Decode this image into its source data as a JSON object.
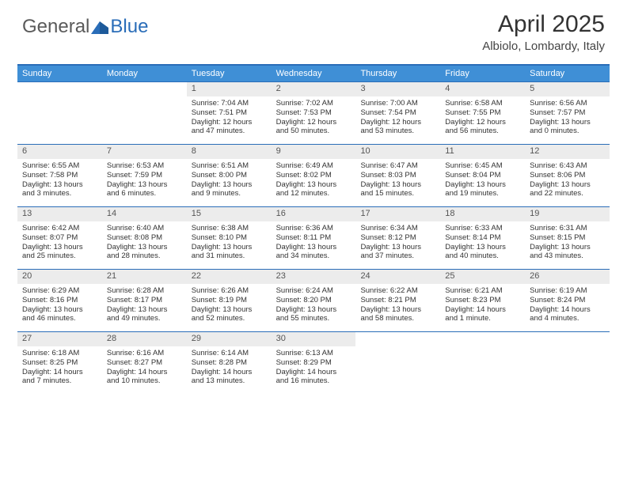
{
  "header": {
    "logo_general": "General",
    "logo_blue": "Blue",
    "month_title": "April 2025",
    "location": "Albiolo, Lombardy, Italy"
  },
  "colors": {
    "header_blue": "#3f8fd6",
    "rule_blue": "#2a6db8",
    "daynum_bg": "#ececec",
    "text": "#333333",
    "logo_gray": "#5a5a5a"
  },
  "weekdays": [
    "Sunday",
    "Monday",
    "Tuesday",
    "Wednesday",
    "Thursday",
    "Friday",
    "Saturday"
  ],
  "weeks": [
    [
      null,
      null,
      {
        "n": "1",
        "sr": "Sunrise: 7:04 AM",
        "ss": "Sunset: 7:51 PM",
        "d1": "Daylight: 12 hours",
        "d2": "and 47 minutes."
      },
      {
        "n": "2",
        "sr": "Sunrise: 7:02 AM",
        "ss": "Sunset: 7:53 PM",
        "d1": "Daylight: 12 hours",
        "d2": "and 50 minutes."
      },
      {
        "n": "3",
        "sr": "Sunrise: 7:00 AM",
        "ss": "Sunset: 7:54 PM",
        "d1": "Daylight: 12 hours",
        "d2": "and 53 minutes."
      },
      {
        "n": "4",
        "sr": "Sunrise: 6:58 AM",
        "ss": "Sunset: 7:55 PM",
        "d1": "Daylight: 12 hours",
        "d2": "and 56 minutes."
      },
      {
        "n": "5",
        "sr": "Sunrise: 6:56 AM",
        "ss": "Sunset: 7:57 PM",
        "d1": "Daylight: 13 hours",
        "d2": "and 0 minutes."
      }
    ],
    [
      {
        "n": "6",
        "sr": "Sunrise: 6:55 AM",
        "ss": "Sunset: 7:58 PM",
        "d1": "Daylight: 13 hours",
        "d2": "and 3 minutes."
      },
      {
        "n": "7",
        "sr": "Sunrise: 6:53 AM",
        "ss": "Sunset: 7:59 PM",
        "d1": "Daylight: 13 hours",
        "d2": "and 6 minutes."
      },
      {
        "n": "8",
        "sr": "Sunrise: 6:51 AM",
        "ss": "Sunset: 8:00 PM",
        "d1": "Daylight: 13 hours",
        "d2": "and 9 minutes."
      },
      {
        "n": "9",
        "sr": "Sunrise: 6:49 AM",
        "ss": "Sunset: 8:02 PM",
        "d1": "Daylight: 13 hours",
        "d2": "and 12 minutes."
      },
      {
        "n": "10",
        "sr": "Sunrise: 6:47 AM",
        "ss": "Sunset: 8:03 PM",
        "d1": "Daylight: 13 hours",
        "d2": "and 15 minutes."
      },
      {
        "n": "11",
        "sr": "Sunrise: 6:45 AM",
        "ss": "Sunset: 8:04 PM",
        "d1": "Daylight: 13 hours",
        "d2": "and 19 minutes."
      },
      {
        "n": "12",
        "sr": "Sunrise: 6:43 AM",
        "ss": "Sunset: 8:06 PM",
        "d1": "Daylight: 13 hours",
        "d2": "and 22 minutes."
      }
    ],
    [
      {
        "n": "13",
        "sr": "Sunrise: 6:42 AM",
        "ss": "Sunset: 8:07 PM",
        "d1": "Daylight: 13 hours",
        "d2": "and 25 minutes."
      },
      {
        "n": "14",
        "sr": "Sunrise: 6:40 AM",
        "ss": "Sunset: 8:08 PM",
        "d1": "Daylight: 13 hours",
        "d2": "and 28 minutes."
      },
      {
        "n": "15",
        "sr": "Sunrise: 6:38 AM",
        "ss": "Sunset: 8:10 PM",
        "d1": "Daylight: 13 hours",
        "d2": "and 31 minutes."
      },
      {
        "n": "16",
        "sr": "Sunrise: 6:36 AM",
        "ss": "Sunset: 8:11 PM",
        "d1": "Daylight: 13 hours",
        "d2": "and 34 minutes."
      },
      {
        "n": "17",
        "sr": "Sunrise: 6:34 AM",
        "ss": "Sunset: 8:12 PM",
        "d1": "Daylight: 13 hours",
        "d2": "and 37 minutes."
      },
      {
        "n": "18",
        "sr": "Sunrise: 6:33 AM",
        "ss": "Sunset: 8:14 PM",
        "d1": "Daylight: 13 hours",
        "d2": "and 40 minutes."
      },
      {
        "n": "19",
        "sr": "Sunrise: 6:31 AM",
        "ss": "Sunset: 8:15 PM",
        "d1": "Daylight: 13 hours",
        "d2": "and 43 minutes."
      }
    ],
    [
      {
        "n": "20",
        "sr": "Sunrise: 6:29 AM",
        "ss": "Sunset: 8:16 PM",
        "d1": "Daylight: 13 hours",
        "d2": "and 46 minutes."
      },
      {
        "n": "21",
        "sr": "Sunrise: 6:28 AM",
        "ss": "Sunset: 8:17 PM",
        "d1": "Daylight: 13 hours",
        "d2": "and 49 minutes."
      },
      {
        "n": "22",
        "sr": "Sunrise: 6:26 AM",
        "ss": "Sunset: 8:19 PM",
        "d1": "Daylight: 13 hours",
        "d2": "and 52 minutes."
      },
      {
        "n": "23",
        "sr": "Sunrise: 6:24 AM",
        "ss": "Sunset: 8:20 PM",
        "d1": "Daylight: 13 hours",
        "d2": "and 55 minutes."
      },
      {
        "n": "24",
        "sr": "Sunrise: 6:22 AM",
        "ss": "Sunset: 8:21 PM",
        "d1": "Daylight: 13 hours",
        "d2": "and 58 minutes."
      },
      {
        "n": "25",
        "sr": "Sunrise: 6:21 AM",
        "ss": "Sunset: 8:23 PM",
        "d1": "Daylight: 14 hours",
        "d2": "and 1 minute."
      },
      {
        "n": "26",
        "sr": "Sunrise: 6:19 AM",
        "ss": "Sunset: 8:24 PM",
        "d1": "Daylight: 14 hours",
        "d2": "and 4 minutes."
      }
    ],
    [
      {
        "n": "27",
        "sr": "Sunrise: 6:18 AM",
        "ss": "Sunset: 8:25 PM",
        "d1": "Daylight: 14 hours",
        "d2": "and 7 minutes."
      },
      {
        "n": "28",
        "sr": "Sunrise: 6:16 AM",
        "ss": "Sunset: 8:27 PM",
        "d1": "Daylight: 14 hours",
        "d2": "and 10 minutes."
      },
      {
        "n": "29",
        "sr": "Sunrise: 6:14 AM",
        "ss": "Sunset: 8:28 PM",
        "d1": "Daylight: 14 hours",
        "d2": "and 13 minutes."
      },
      {
        "n": "30",
        "sr": "Sunrise: 6:13 AM",
        "ss": "Sunset: 8:29 PM",
        "d1": "Daylight: 14 hours",
        "d2": "and 16 minutes."
      },
      null,
      null,
      null
    ]
  ]
}
